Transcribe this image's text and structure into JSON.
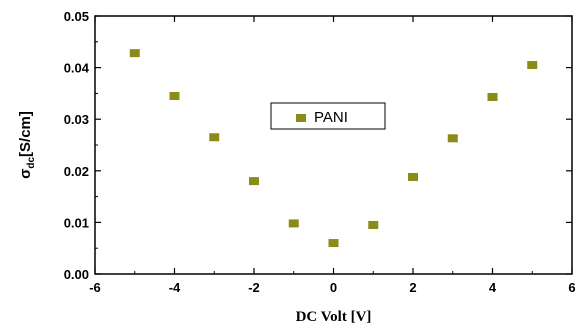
{
  "chart_data": {
    "type": "scatter",
    "title": "",
    "xlabel": "DC Volt  [V]",
    "ylabel_symbol": "σ",
    "ylabel_sub": "dc",
    "ylabel_unit": "[S/cm]",
    "xlim": [
      -6,
      6
    ],
    "ylim": [
      0.0,
      0.05
    ],
    "xticks": [
      "-6",
      "-4",
      "-2",
      "0",
      "2",
      "4",
      "6"
    ],
    "yticks": [
      "0.00",
      "0.01",
      "0.02",
      "0.03",
      "0.04",
      "0.05"
    ],
    "grid": false,
    "legend_position": "center",
    "marker_color": "#8b8b1a",
    "series": [
      {
        "name": "PANI",
        "x": [
          -5,
          -4,
          -3,
          -2,
          -1,
          0,
          1,
          2,
          3,
          4,
          5
        ],
        "y": [
          0.0428,
          0.0345,
          0.0265,
          0.018,
          0.0098,
          0.006,
          0.0095,
          0.0188,
          0.0263,
          0.0343,
          0.0405
        ]
      }
    ]
  }
}
